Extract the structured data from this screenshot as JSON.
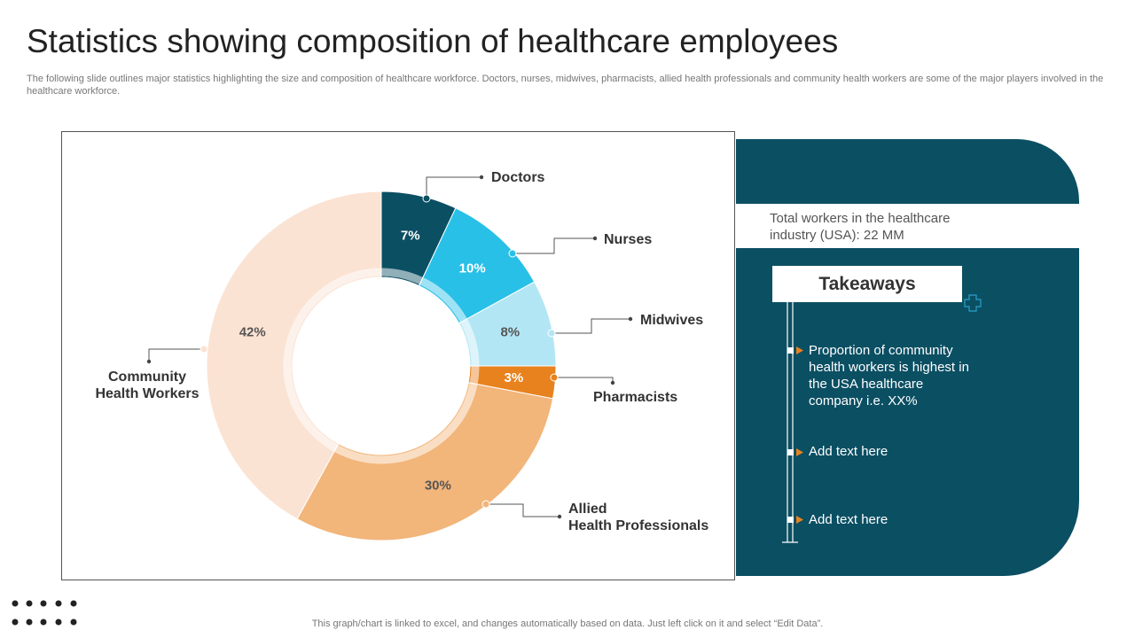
{
  "title": "Statistics showing composition of healthcare employees",
  "subtitle": "The following slide outlines major statistics highlighting the size and composition of healthcare workforce. Doctors, nurses, midwives, pharmacists, allied health professionals and community health workers are some of the major players involved in the healthcare workforce.",
  "chart_data": {
    "type": "donut",
    "categories": [
      "Doctors",
      "Nurses",
      "Midwives",
      "Pharmacists",
      "Allied\nHealth Professionals",
      "Community\nHealth Workers"
    ],
    "values": [
      7,
      10,
      8,
      3,
      30,
      42
    ],
    "value_labels": [
      "7%",
      "10%",
      "8%",
      "3%",
      "30%",
      "42%"
    ],
    "colors": [
      "#0b4f63",
      "#29c0e8",
      "#b3e6f5",
      "#e8821e",
      "#f2b57a",
      "#fbe3d3"
    ]
  },
  "panel": {
    "total": "Total workers in the healthcare\n industry  (USA): 22 MM",
    "heading": "Takeaways",
    "bullets": [
      "Proportion of community health workers is highest in the USA healthcare company i.e. XX%",
      "Add text here",
      "Add text here"
    ]
  },
  "footer": "This graph/chart is linked to excel,  and changes automatically based on data. Just left click on it and select “Edit Data”."
}
